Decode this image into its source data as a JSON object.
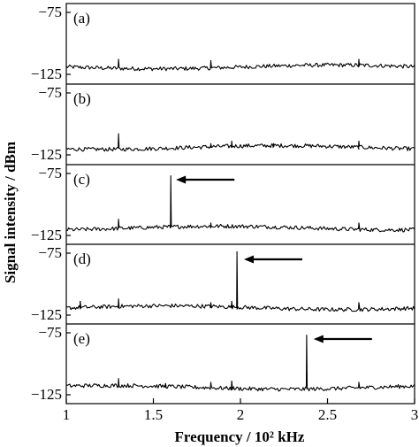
{
  "chart_data": {
    "type": "line",
    "layout": "five vertically stacked panels sharing one x axis",
    "xlabel": "Frequency / 10² kHz",
    "ylabel": "Signal intensity / dBm",
    "xlim": [
      1,
      3
    ],
    "xticks": [
      "1",
      "1.5",
      "2",
      "2.5",
      "3"
    ],
    "ylim": [
      -130,
      -70
    ],
    "yticks": [
      "−75",
      "−125"
    ],
    "noise_floor_dbm": -119,
    "background_peaks_x": [
      1.3,
      1.83,
      1.95,
      2.19,
      2.68
    ],
    "panels": [
      {
        "label": "(a)",
        "peaks": [
          {
            "x": 1.3,
            "y": -113
          },
          {
            "x": 1.83,
            "y": -114
          },
          {
            "x": 2.68,
            "y": -113
          }
        ],
        "arrow": false,
        "arrow_tip_x": null
      },
      {
        "label": "(b)",
        "peaks": [
          {
            "x": 1.3,
            "y": -108
          },
          {
            "x": 1.83,
            "y": -116
          },
          {
            "x": 1.95,
            "y": -114
          },
          {
            "x": 2.19,
            "y": -116
          },
          {
            "x": 2.68,
            "y": -114
          }
        ],
        "arrow": false,
        "arrow_tip_x": null
      },
      {
        "label": "(c)",
        "peaks": [
          {
            "x": 1.3,
            "y": -112
          },
          {
            "x": 1.6,
            "y": -77
          },
          {
            "x": 1.83,
            "y": -115
          },
          {
            "x": 2.68,
            "y": -115
          }
        ],
        "arrow": true,
        "arrow_tip_x": 1.61
      },
      {
        "label": "(d)",
        "peaks": [
          {
            "x": 1.08,
            "y": -114
          },
          {
            "x": 1.3,
            "y": -112
          },
          {
            "x": 1.83,
            "y": -115
          },
          {
            "x": 1.95,
            "y": -114
          },
          {
            "x": 1.98,
            "y": -74
          },
          {
            "x": 2.68,
            "y": -115
          }
        ],
        "arrow": true,
        "arrow_tip_x": 2.0
      },
      {
        "label": "(e)",
        "peaks": [
          {
            "x": 1.3,
            "y": -112
          },
          {
            "x": 1.57,
            "y": -116
          },
          {
            "x": 1.83,
            "y": -115
          },
          {
            "x": 1.95,
            "y": -114
          },
          {
            "x": 2.38,
            "y": -77
          },
          {
            "x": 2.68,
            "y": -115
          }
        ],
        "arrow": true,
        "arrow_tip_x": 2.4
      }
    ]
  }
}
